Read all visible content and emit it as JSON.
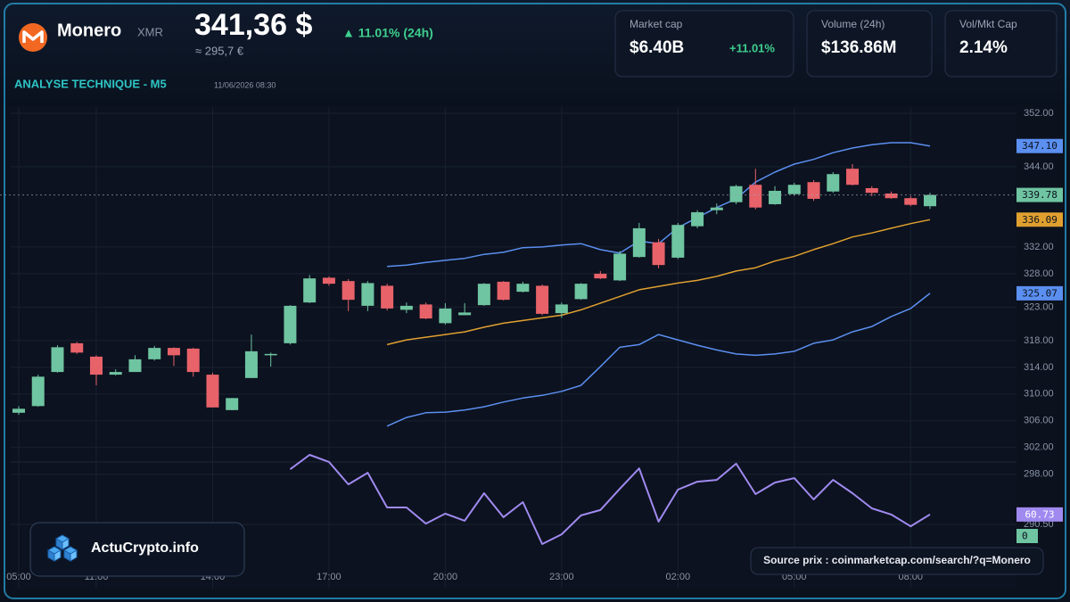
{
  "header": {
    "coin": "Monero",
    "symbol": "XMR",
    "price": "341,36 $",
    "change": "▲ 11.01% (24h)",
    "price_eur": "≈ 295,7 €",
    "section": "ANALYSE TECHNIQUE - M5",
    "timestamp": "11/06/2026 08:30"
  },
  "stats": [
    {
      "label": "Market cap",
      "value": "$6.40B",
      "change": "+11.01%"
    },
    {
      "label": "Volume (24h)",
      "value": "$136.86M"
    },
    {
      "label": "Vol/Mkt Cap",
      "value": "2.14%"
    }
  ],
  "brand": "ActuCrypto.info",
  "source": "Source prix : coinmarketcap.com/search/?q=Monero",
  "chart_data": {
    "type": "candlestick",
    "categories": [
      "05:00",
      null,
      null,
      null,
      "11:00",
      null,
      null,
      null,
      null,
      null,
      "14:00",
      null,
      null,
      null,
      null,
      null,
      "17:00",
      null,
      null,
      null,
      null,
      null,
      "20:00",
      null,
      null,
      null,
      null,
      null,
      "23:00",
      null,
      null,
      null,
      null,
      null,
      "02:00",
      null,
      null,
      null,
      null,
      null,
      "05:00",
      null,
      null,
      null,
      null,
      null,
      "08:00",
      null
    ],
    "open": [
      307.2,
      308.2,
      313.3,
      317.6,
      315.6,
      312.9,
      313.3,
      315.2,
      316.9,
      316.8,
      312.9,
      307.6,
      312.4,
      315.8,
      317.6,
      323.7,
      327.4,
      326.9,
      323.2,
      326.2,
      322.6,
      323.4,
      320.6,
      321.8,
      323.3,
      326.8,
      325.3,
      326.2,
      322.1,
      324.2,
      328.0,
      327.0,
      330.5,
      332.7,
      330.4,
      335.1,
      337.5,
      338.7,
      341.3,
      338.4,
      339.9,
      341.7,
      340.3,
      343.7,
      340.8,
      340.0,
      339.3,
      338.1
    ],
    "high": [
      308.2,
      312.9,
      317.3,
      317.8,
      315.8,
      313.7,
      315.8,
      317.2,
      317.0,
      316.9,
      313.2,
      309.4,
      318.9,
      316.2,
      323.3,
      327.8,
      327.6,
      327.2,
      326.9,
      326.5,
      323.7,
      323.7,
      323.6,
      323.6,
      326.6,
      326.9,
      326.8,
      326.4,
      323.7,
      326.6,
      328.4,
      331.4,
      335.6,
      333.2,
      335.6,
      337.5,
      338.5,
      341.3,
      343.7,
      341.1,
      341.6,
      342.0,
      343.2,
      344.4,
      341.1,
      340.3,
      339.6,
      340.1
    ],
    "low": [
      306.9,
      308.1,
      313.2,
      316.0,
      311.3,
      312.8,
      313.3,
      315.0,
      314.2,
      312.6,
      308.0,
      307.6,
      312.4,
      314.1,
      317.4,
      323.6,
      326.2,
      322.4,
      322.4,
      322.5,
      322.1,
      321.2,
      320.4,
      321.8,
      323.2,
      324.0,
      325.2,
      321.8,
      321.4,
      324.1,
      327.2,
      326.9,
      330.4,
      328.8,
      330.2,
      334.8,
      336.9,
      338.4,
      337.6,
      338.3,
      339.7,
      338.9,
      340.1,
      341.2,
      339.6,
      339.2,
      338.1,
      337.7
    ],
    "close": [
      307.8,
      312.6,
      317.0,
      316.2,
      312.9,
      313.3,
      315.2,
      316.9,
      315.8,
      313.3,
      308.0,
      309.4,
      316.4,
      316.0,
      323.2,
      327.3,
      326.5,
      324.1,
      326.6,
      322.8,
      323.2,
      321.3,
      322.8,
      322.2,
      326.5,
      324.1,
      326.5,
      322.0,
      323.4,
      326.5,
      327.3,
      331.0,
      334.8,
      329.3,
      335.3,
      337.2,
      337.9,
      341.1,
      337.9,
      340.4,
      341.3,
      339.2,
      342.9,
      341.3,
      340.1,
      339.3,
      338.3,
      339.78
    ],
    "badge": "339.78",
    "up_color": "#6fc4a1",
    "down_color": "#e8626a",
    "series": [
      {
        "color": "#5b8ff0",
        "badge": "347.10",
        "values": [
          null,
          null,
          null,
          null,
          null,
          null,
          null,
          null,
          null,
          null,
          null,
          null,
          null,
          null,
          null,
          null,
          null,
          null,
          null,
          329.1,
          329.3,
          329.7,
          330.0,
          330.3,
          330.9,
          331.2,
          331.9,
          332.0,
          332.3,
          332.5,
          331.6,
          331.1,
          332.9,
          332.5,
          334.9,
          336.4,
          337.9,
          339.2,
          341.7,
          343.2,
          344.4,
          345.1,
          346.1,
          346.8,
          347.3,
          347.6,
          347.6,
          347.1
        ]
      },
      {
        "color": "#e0a030",
        "badge": "336.09",
        "values": [
          null,
          null,
          null,
          null,
          null,
          null,
          null,
          null,
          null,
          null,
          null,
          null,
          null,
          null,
          null,
          null,
          null,
          null,
          null,
          317.4,
          318.1,
          318.5,
          318.9,
          319.3,
          320.0,
          320.6,
          321.0,
          321.4,
          321.8,
          322.6,
          323.6,
          324.6,
          325.6,
          326.1,
          326.6,
          327.0,
          327.6,
          328.4,
          328.9,
          329.9,
          330.6,
          331.6,
          332.5,
          333.5,
          334.1,
          334.8,
          335.5,
          336.09
        ]
      },
      {
        "color": "#5b8ff0",
        "badge": "325.07",
        "values": [
          null,
          null,
          null,
          null,
          null,
          null,
          null,
          null,
          null,
          null,
          null,
          null,
          null,
          null,
          null,
          null,
          null,
          null,
          null,
          305.2,
          306.5,
          307.2,
          307.3,
          307.6,
          308.1,
          308.8,
          309.4,
          309.8,
          310.4,
          311.3,
          314.1,
          317.0,
          317.4,
          318.9,
          318.1,
          317.3,
          316.6,
          316.0,
          315.8,
          316.0,
          316.4,
          317.6,
          318.1,
          319.3,
          320.1,
          321.6,
          322.8,
          325.07
        ]
      },
      {
        "color": "#a08af0",
        "badge": "60.73",
        "axis": "y2",
        "values": [
          null,
          null,
          null,
          null,
          null,
          null,
          null,
          null,
          null,
          null,
          null,
          null,
          null,
          null,
          81.1,
          87.6,
          84.4,
          74.3,
          79.5,
          63.9,
          63.9,
          56.6,
          61.1,
          57.9,
          70.3,
          59.5,
          66.3,
          47.4,
          51.8,
          60.3,
          62.7,
          72.3,
          81.5,
          57.5,
          71.9,
          75.5,
          76.3,
          83.6,
          69.9,
          75.1,
          77.1,
          67.5,
          76.3,
          70.3,
          63.5,
          60.7,
          55.4,
          60.73
        ]
      }
    ],
    "zero_badge": 0,
    "ylim": [
      286.5,
      352.8
    ],
    "yticks": [
      {
        "value": 352,
        "label": "352.00"
      },
      {
        "value": 344,
        "label": "344.00"
      },
      {
        "value": 332,
        "label": "332.00"
      },
      {
        "value": 328,
        "label": "328.00"
      },
      {
        "value": 323,
        "label": "323.00"
      },
      {
        "value": 318,
        "label": "318.00"
      },
      {
        "value": 314,
        "label": "314.00"
      },
      {
        "value": 310,
        "label": "310.00"
      },
      {
        "value": 306,
        "label": "306.00"
      },
      {
        "value": 302,
        "label": "302.00"
      },
      {
        "value": 298,
        "label": "298.00"
      },
      {
        "value": 290.5,
        "label": "290.50"
      }
    ],
    "y2lim": [
      45,
      90
    ],
    "grid": true
  }
}
